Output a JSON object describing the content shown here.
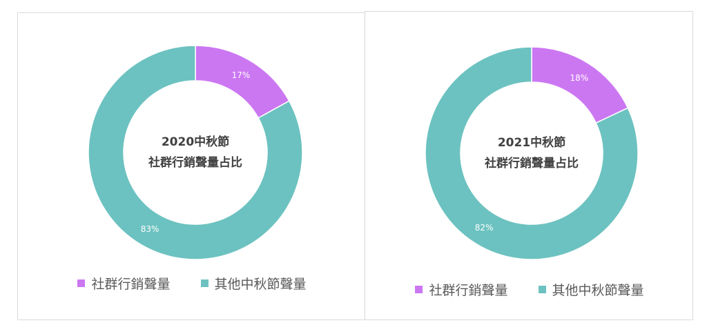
{
  "colors": {
    "social": "#cc77f2",
    "other": "#6cc2c0"
  },
  "chart_data": [
    {
      "type": "pie",
      "donut": true,
      "title": [
        "2020中秋節",
        "社群行銷聲量占比"
      ],
      "categories": [
        "社群行銷聲量",
        "其他中秋節聲量"
      ],
      "values": [
        17,
        83
      ],
      "labels": [
        "17%",
        "83%"
      ],
      "legend": "bottom"
    },
    {
      "type": "pie",
      "donut": true,
      "title": [
        "2021中秋節",
        "社群行銷聲量占比"
      ],
      "categories": [
        "社群行銷聲量",
        "其他中秋節聲量"
      ],
      "values": [
        18,
        82
      ],
      "labels": [
        "18%",
        "82%"
      ],
      "legend": "bottom"
    }
  ]
}
